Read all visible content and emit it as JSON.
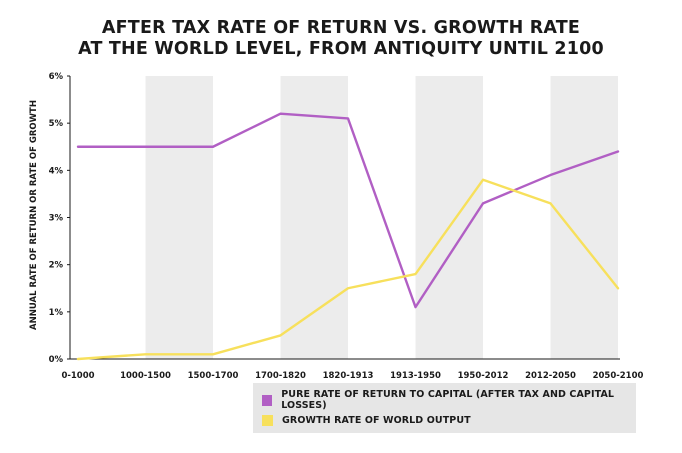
{
  "chart_data": {
    "type": "line",
    "title": [
      "AFTER TAX RATE OF RETURN VS. GROWTH RATE",
      "AT THE WORLD LEVEL, FROM ANTIQUITY UNTIL 2100"
    ],
    "xlabel": "",
    "ylabel": "ANNUAL RATE OF RETURN OR RATE OF GROWTH",
    "categories": [
      "0-1000",
      "1000-1500",
      "1500-1700",
      "1700-1820",
      "1820-1913",
      "1913-1950",
      "1950-2012",
      "2012-2050",
      "2050-2100"
    ],
    "ylim": [
      0,
      6
    ],
    "yticks": [
      "0%",
      "1%",
      "2%",
      "3%",
      "4%",
      "5%",
      "6%"
    ],
    "series": [
      {
        "name": "PURE RATE OF RETURN TO CAPITAL (AFTER TAX AND CAPITAL LOSSES)",
        "color": "#b15fc4",
        "values": [
          4.5,
          4.5,
          4.5,
          5.2,
          5.1,
          1.1,
          3.3,
          3.9,
          4.4
        ]
      },
      {
        "name": "GROWTH RATE OF WORLD OUTPUT",
        "color": "#f7e05c",
        "values": [
          0.0,
          0.1,
          0.1,
          0.5,
          1.5,
          1.8,
          3.8,
          3.3,
          1.5
        ]
      }
    ],
    "legend_position": "bottom-right"
  },
  "colors": {
    "band": "#ececec",
    "axis": "#1a1a1a",
    "legend_bg": "#e6e6e6"
  }
}
